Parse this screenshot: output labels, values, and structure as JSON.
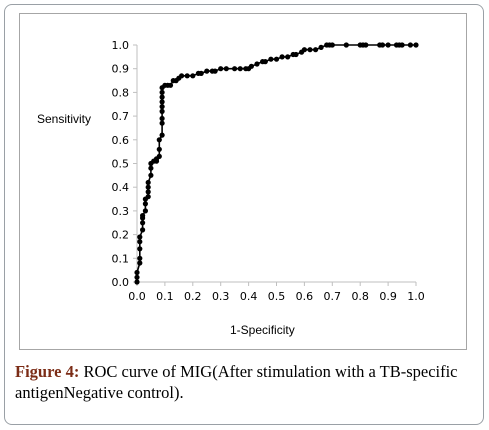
{
  "caption": {
    "label": "Figure 4:",
    "text": " ROC curve of MIG(After stimulation with a TB-specific antigenNegative control)."
  },
  "chart_data": {
    "type": "line",
    "title": "",
    "xlabel": "1-Specificity",
    "ylabel": "Sensitivity",
    "xlim": [
      0,
      1
    ],
    "ylim": [
      0,
      1
    ],
    "xticks": [
      "0.0",
      "0.1",
      "0.2",
      "0.3",
      "0.4",
      "0.5",
      "0.6",
      "0.7",
      "0.8",
      "0.9",
      "1.0"
    ],
    "yticks": [
      "0.0",
      "0.1",
      "0.2",
      "0.3",
      "0.4",
      "0.5",
      "0.6",
      "0.7",
      "0.8",
      "0.9",
      "1.0"
    ],
    "grid": false,
    "legend": "none",
    "colors": {
      "line": "#000000",
      "marker": "#000000",
      "axis": "#bfbfbf"
    },
    "series": [
      {
        "x": [
          0.0,
          0.0,
          0.0,
          0.01,
          0.01,
          0.01,
          0.01,
          0.01,
          0.02,
          0.02,
          0.02,
          0.02,
          0.03,
          0.03,
          0.03,
          0.04,
          0.04,
          0.04,
          0.04,
          0.05,
          0.05,
          0.05,
          0.06,
          0.07,
          0.07,
          0.08,
          0.08,
          0.08,
          0.09,
          0.09,
          0.09,
          0.09,
          0.09,
          0.09,
          0.09,
          0.09,
          0.09,
          0.1,
          0.11,
          0.12,
          0.13,
          0.14,
          0.15,
          0.16,
          0.18,
          0.2,
          0.22,
          0.23,
          0.25,
          0.27,
          0.28,
          0.3,
          0.32,
          0.35,
          0.37,
          0.39,
          0.4,
          0.41,
          0.43,
          0.45,
          0.46,
          0.48,
          0.5,
          0.52,
          0.54,
          0.56,
          0.57,
          0.59,
          0.6,
          0.62,
          0.64,
          0.66,
          0.68,
          0.69,
          0.7,
          0.75,
          0.8,
          0.81,
          0.82,
          0.87,
          0.88,
          0.9,
          0.93,
          0.94,
          0.95,
          0.98,
          1.0
        ],
        "y": [
          0.0,
          0.02,
          0.04,
          0.08,
          0.1,
          0.14,
          0.17,
          0.19,
          0.22,
          0.25,
          0.27,
          0.28,
          0.3,
          0.33,
          0.35,
          0.36,
          0.38,
          0.4,
          0.42,
          0.45,
          0.48,
          0.5,
          0.51,
          0.51,
          0.52,
          0.53,
          0.56,
          0.6,
          0.62,
          0.67,
          0.69,
          0.72,
          0.74,
          0.76,
          0.78,
          0.8,
          0.82,
          0.83,
          0.83,
          0.83,
          0.85,
          0.85,
          0.86,
          0.87,
          0.87,
          0.87,
          0.88,
          0.88,
          0.89,
          0.89,
          0.89,
          0.9,
          0.9,
          0.9,
          0.9,
          0.9,
          0.9,
          0.91,
          0.92,
          0.93,
          0.93,
          0.94,
          0.94,
          0.95,
          0.95,
          0.96,
          0.96,
          0.97,
          0.98,
          0.98,
          0.98,
          0.99,
          1.0,
          1.0,
          1.0,
          1.0,
          1.0,
          1.0,
          1.0,
          1.0,
          1.0,
          1.0,
          1.0,
          1.0,
          1.0,
          1.0,
          1.0
        ]
      }
    ]
  }
}
